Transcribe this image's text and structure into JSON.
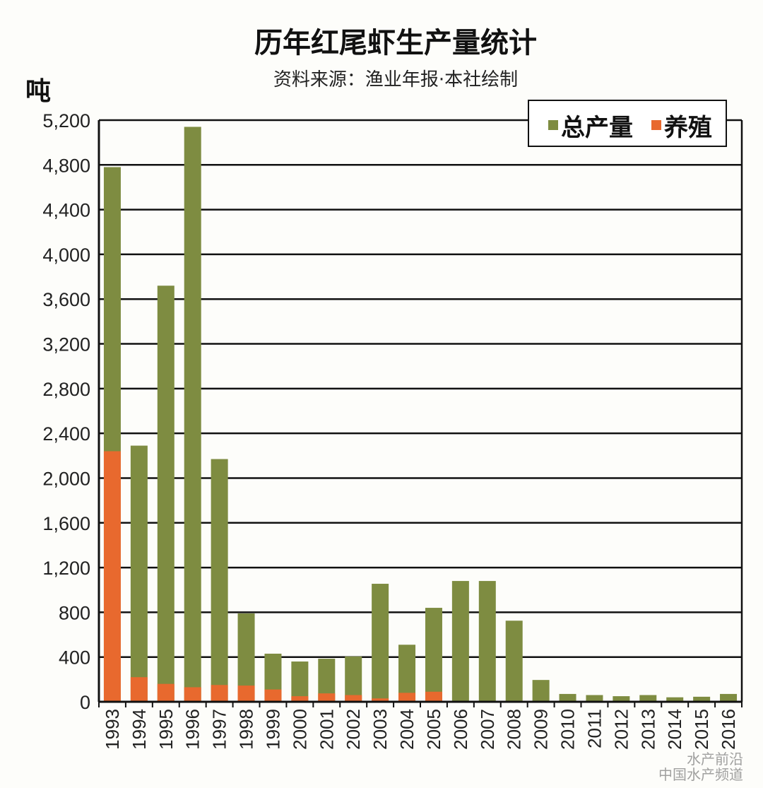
{
  "chart_data": {
    "type": "bar",
    "stacked": false,
    "overlay": true,
    "title": "历年红尾虾生产量统计",
    "subtitle": "资料来源：渔业年报·本社绘制",
    "ylabel": "吨",
    "xlabel": "",
    "ylim": [
      0,
      5200
    ],
    "yticks": [
      "0",
      "400",
      "800",
      "1,200",
      "1,600",
      "2,000",
      "2,400",
      "2,800",
      "3,200",
      "3,600",
      "4,000",
      "4,400",
      "4,800",
      "5,200"
    ],
    "ytick_values": [
      0,
      400,
      800,
      1200,
      1600,
      2000,
      2400,
      2800,
      3200,
      3600,
      4000,
      4400,
      4800,
      5200
    ],
    "grid": true,
    "legend_position": "top-right",
    "categories": [
      "1993",
      "1994",
      "1995",
      "1996",
      "1997",
      "1998",
      "1999",
      "2000",
      "2001",
      "2002",
      "2003",
      "2004",
      "2005",
      "2006",
      "2007",
      "2008",
      "2009",
      "2010",
      "2011",
      "2012",
      "2013",
      "2014",
      "2015",
      "2016"
    ],
    "series": [
      {
        "name": "总产量",
        "color": "#7e8c41",
        "values": [
          4780,
          2290,
          3720,
          5140,
          2170,
          790,
          430,
          360,
          385,
          405,
          1055,
          510,
          840,
          1080,
          1080,
          725,
          195,
          70,
          60,
          50,
          60,
          40,
          45,
          70
        ]
      },
      {
        "name": "养殖",
        "color": "#e8692e",
        "values": [
          2240,
          220,
          160,
          130,
          150,
          145,
          110,
          50,
          75,
          60,
          30,
          80,
          90,
          0,
          0,
          0,
          0,
          0,
          0,
          0,
          0,
          0,
          0,
          0
        ]
      }
    ]
  },
  "watermark": {
    "line1": "水产前沿",
    "line2": "中国水产频道"
  }
}
